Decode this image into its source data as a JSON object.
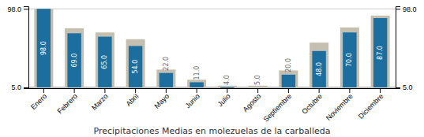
{
  "chart_data": {
    "type": "bar",
    "title": "Precipitaciones Medias en molezuelas de la carballeda",
    "categories": [
      "Enero",
      "Febrero",
      "Marzo",
      "Abril",
      "Mayo",
      "Junio",
      "Julio",
      "Agosto",
      "Septiembre",
      "Octubre",
      "Noviembre",
      "Diciembre"
    ],
    "series": [
      {
        "color": "#c5bfb2",
        "values": [
          98.0,
          75.0,
          70.0,
          62.0,
          26.0,
          14.0,
          7.0,
          7.0,
          25.0,
          58.0,
          76.0,
          90.0
        ]
      },
      {
        "color": "#1b6e9e",
        "values": [
          98.0,
          69.0,
          65.0,
          54.0,
          22.0,
          11.0,
          4.0,
          5.0,
          20.0,
          48.0,
          70.0,
          87.0
        ],
        "data_labels": true,
        "value_labels": [
          "98.0",
          "69.0",
          "65.0",
          "54.0",
          "22.0",
          "11.0",
          "4.0",
          "5.0",
          "20.0",
          "48.0",
          "70.0",
          "87.0"
        ]
      }
    ],
    "ylim": [
      4,
      101
    ],
    "yticks": [
      {
        "value": 5,
        "label": "5.0"
      },
      {
        "value": 98,
        "label": "98.0"
      }
    ],
    "y2lim": [
      4,
      101
    ],
    "y2ticks": [
      {
        "value": 5,
        "label": "5.0"
      },
      {
        "value": 98,
        "label": "98.0"
      }
    ],
    "grid": true
  }
}
